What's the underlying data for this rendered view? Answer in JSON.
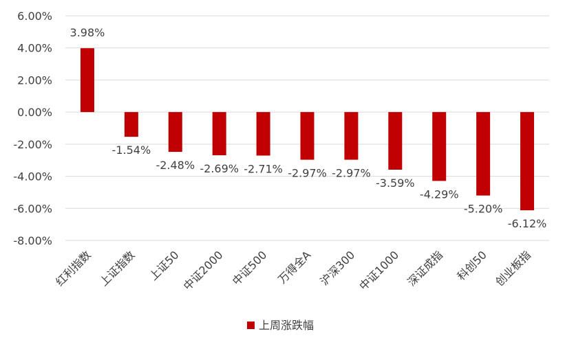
{
  "chart_data": {
    "type": "bar",
    "categories": [
      "红利指数",
      "上证指数",
      "上证50",
      "中证2000",
      "中证500",
      "万得全A",
      "沪深300",
      "中证1000",
      "深证成指",
      "科创50",
      "创业板指"
    ],
    "series": [
      {
        "name": "上周涨跌幅",
        "values": [
          3.98,
          -1.54,
          -2.48,
          -2.69,
          -2.71,
          -2.97,
          -2.97,
          -3.59,
          -4.29,
          -5.2,
          -6.12
        ],
        "labels": [
          "3.98%",
          "-1.54%",
          "-2.48%",
          "-2.69%",
          "-2.71%",
          "-2.97%",
          "-2.97%",
          "-3.59%",
          "-4.29%",
          "-5.20%",
          "-6.12%"
        ],
        "color": "#c00000"
      }
    ],
    "yticks": [
      "6.00%",
      "4.00%",
      "2.00%",
      "0.00%",
      "-2.00%",
      "-4.00%",
      "-6.00%",
      "-8.00%"
    ],
    "ylim": [
      -8,
      6
    ],
    "grid": true,
    "legend": "bottom"
  }
}
